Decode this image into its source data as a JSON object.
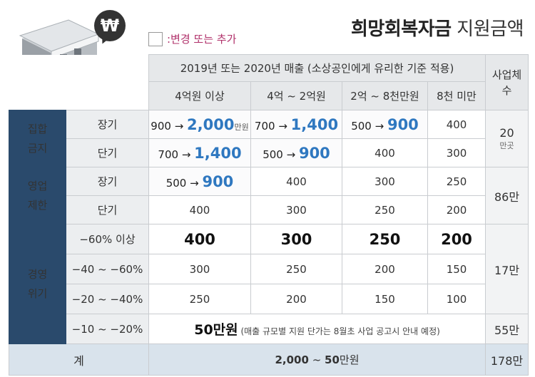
{
  "legend_label": ":변경 또는 추가",
  "title_bold": "희망회복자금",
  "title_light": " 지원금액",
  "won_icon": "₩",
  "header": {
    "period": "2019년 또는 2020년 매출 (소상공인에게 유리한 기준 적용)",
    "businesses": "사업체 수",
    "sales_tiers": [
      "4억원 이상",
      "4억 ~ 2억원",
      "2억 ~ 8천만원",
      "8천 미만"
    ]
  },
  "groups": {
    "gathering_ban": {
      "label": "집합 금지",
      "count": "20",
      "count_unit": "만곳",
      "long": {
        "label": "장기",
        "c1_old": "900",
        "c1_new": "2,000",
        "c1_unit": "만원",
        "c2_old": "700",
        "c2_new": "1,400",
        "c3_old": "500",
        "c3_new": "900",
        "c4": "400"
      },
      "short": {
        "label": "단기",
        "c1_old": "700",
        "c1_new": "1,400",
        "c2_old": "500",
        "c2_new": "900",
        "c3": "400",
        "c4": "300"
      }
    },
    "business_limit": {
      "label": "영업 제한",
      "count": "86만",
      "long": {
        "label": "장기",
        "c1_old": "500",
        "c1_new": "900",
        "c2": "400",
        "c3": "300",
        "c4": "250"
      },
      "short": {
        "label": "단기",
        "c1": "400",
        "c2": "300",
        "c3": "250",
        "c4": "200"
      }
    },
    "management_crisis": {
      "label": "경영 위기",
      "count": "17만",
      "rows": [
        {
          "label": "−60% 이상",
          "c1": "400",
          "c2": "300",
          "c3": "250",
          "c4": "200"
        },
        {
          "label": "−40 ~ −60%",
          "c1": "300",
          "c2": "250",
          "c3": "200",
          "c4": "150"
        },
        {
          "label": "−20 ~ −40%",
          "c1": "250",
          "c2": "200",
          "c3": "150",
          "c4": "100"
        }
      ],
      "last": {
        "label": "−10 ~ −20%",
        "amount": "50만원",
        "note": " (매출 규모별 지원 단가는 8월초 사업 공고시 안내 예정)",
        "count": "55만"
      }
    }
  },
  "total": {
    "label": "계",
    "from": "2,000",
    "tilde": " ~ ",
    "to": "50",
    "unit": "만원",
    "count": "178만"
  }
}
